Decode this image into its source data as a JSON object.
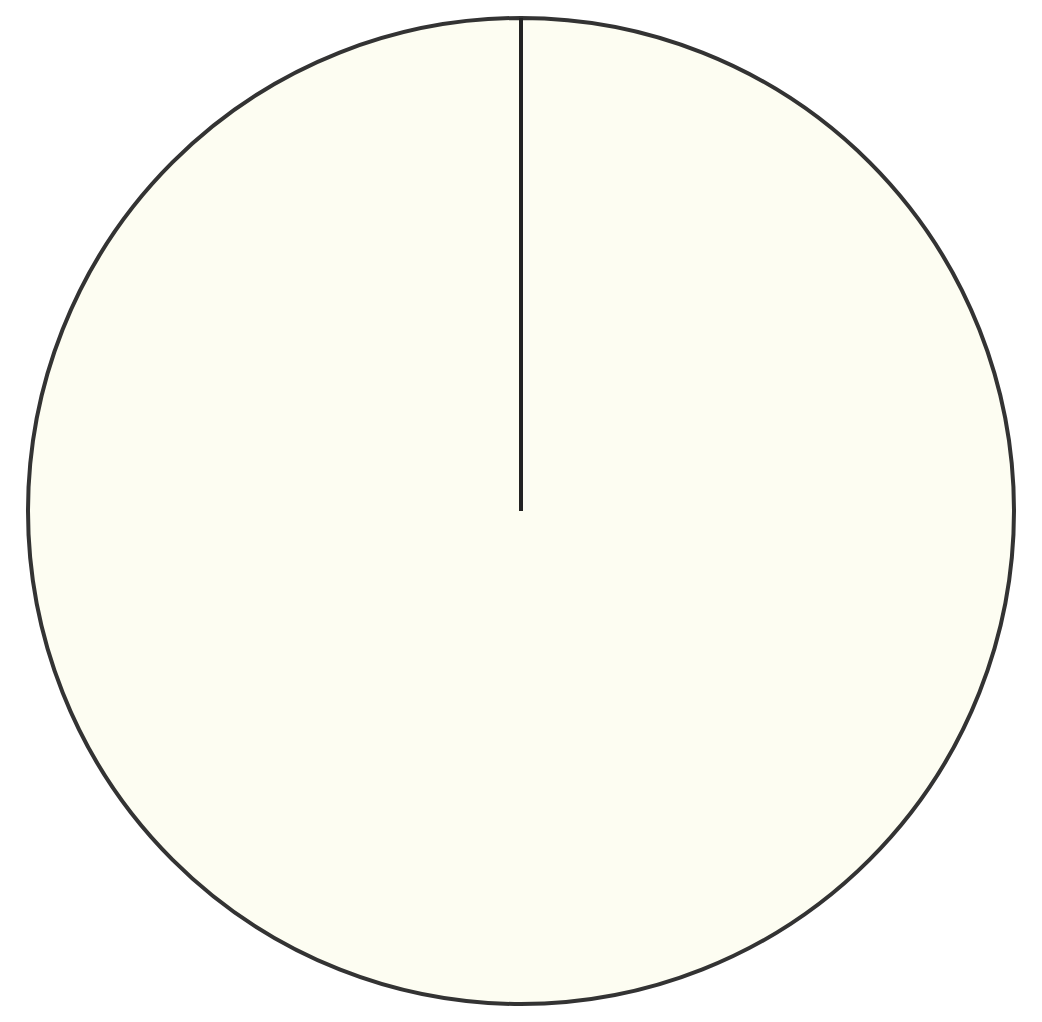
{
  "chart_data": {
    "type": "pie",
    "categories": [
      null
    ],
    "values": [
      100
    ],
    "colors": [
      "#fdfdf2"
    ],
    "legend": false
  }
}
